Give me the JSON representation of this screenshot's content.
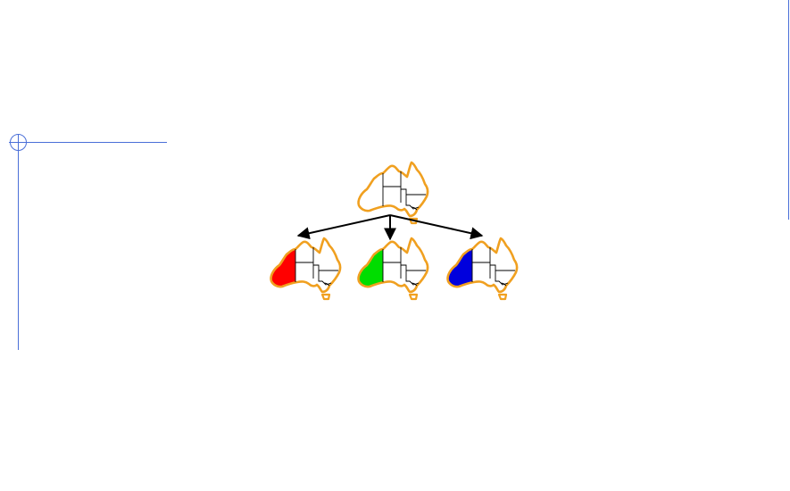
{
  "diagram": {
    "type": "tree",
    "root": {
      "id": "uncolored-map",
      "fill": "none"
    },
    "children": [
      {
        "id": "map-wa-red",
        "fill": "#ff0000"
      },
      {
        "id": "map-wa-green",
        "fill": "#00dd00"
      },
      {
        "id": "map-wa-blue",
        "fill": "#0000dd"
      }
    ]
  },
  "colors": {
    "outline": "#f0a020",
    "borders": "#000000",
    "edges": "#000000",
    "page_guides": "#4a6fd8"
  }
}
